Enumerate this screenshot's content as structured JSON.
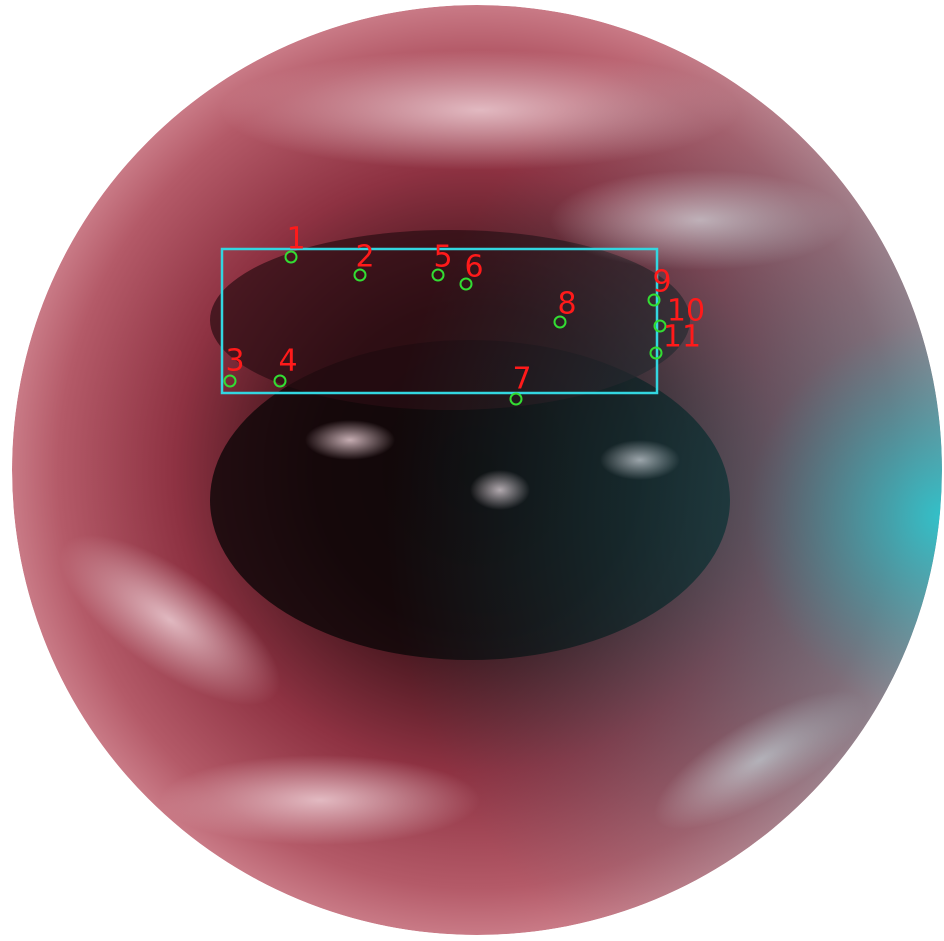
{
  "points": [
    {
      "label": "1"
    },
    {
      "label": "2"
    },
    {
      "label": "3"
    },
    {
      "label": "4"
    },
    {
      "label": "5"
    },
    {
      "label": "6"
    },
    {
      "label": "7"
    },
    {
      "label": "8"
    },
    {
      "label": "9"
    },
    {
      "label": "10"
    },
    {
      "label": "11"
    }
  ]
}
